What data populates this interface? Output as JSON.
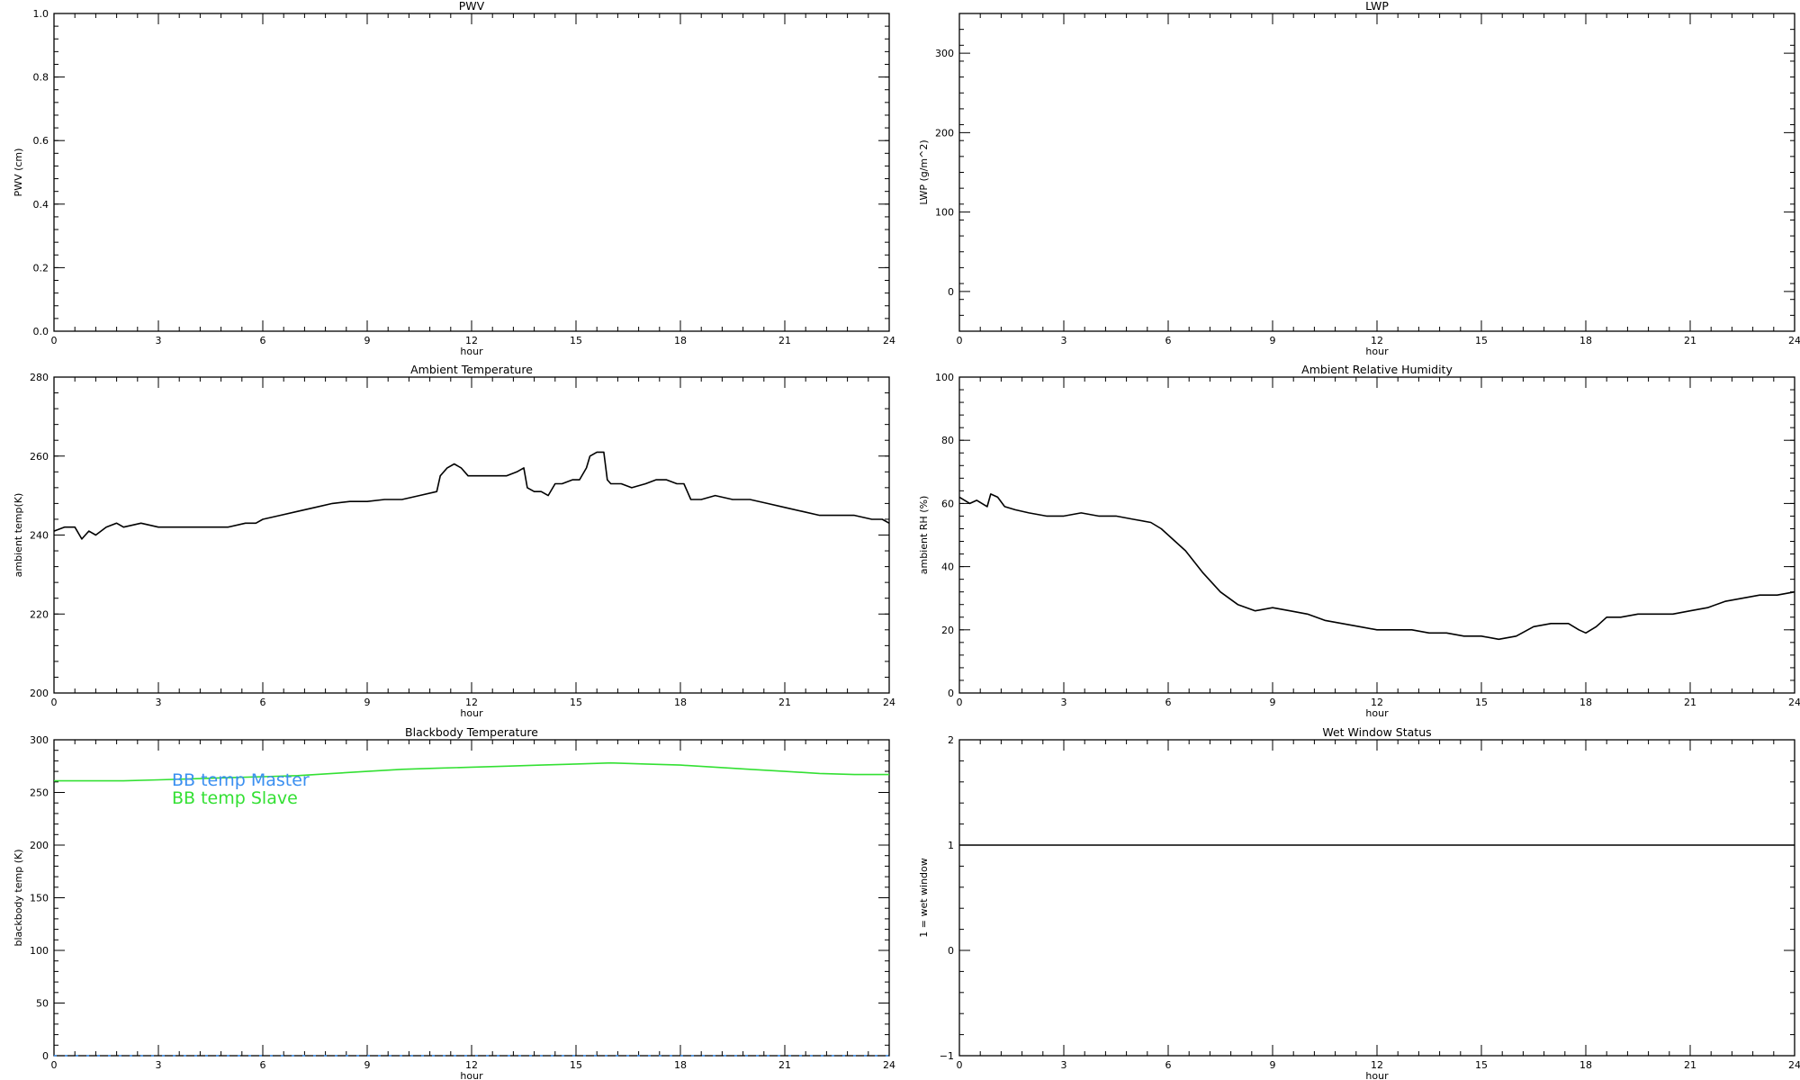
{
  "chart_data": [
    {
      "type": "line",
      "title": "PWV",
      "xlabel": "hour",
      "ylabel": "PWV (cm)",
      "xlim": [
        0,
        24
      ],
      "ylim": [
        0.0,
        1.0
      ],
      "xticks": [
        0,
        3,
        6,
        9,
        12,
        15,
        18,
        21,
        24
      ],
      "xtick_labels": [
        "0",
        "3",
        "6",
        "9",
        "12",
        "15",
        "18",
        "21",
        "24"
      ],
      "yticks": [
        0.0,
        0.2,
        0.4,
        0.6,
        0.8,
        1.0
      ],
      "ytick_labels": [
        "0.0",
        "0.2",
        "0.4",
        "0.6",
        "0.8",
        "1.0"
      ],
      "series": []
    },
    {
      "type": "line",
      "title": "LWP",
      "xlabel": "hour",
      "ylabel": "LWP (g/m^2)",
      "xlim": [
        0,
        24
      ],
      "ylim": [
        -50,
        350
      ],
      "xticks": [
        0,
        3,
        6,
        9,
        12,
        15,
        18,
        21,
        24
      ],
      "xtick_labels": [
        "0",
        "3",
        "6",
        "9",
        "12",
        "15",
        "18",
        "21",
        "24"
      ],
      "yticks": [
        0,
        100,
        200,
        300
      ],
      "ytick_labels": [
        "0",
        "100",
        "200",
        "300"
      ],
      "series": []
    },
    {
      "type": "line",
      "title": "Ambient Temperature",
      "xlabel": "hour",
      "ylabel": "ambient temp(K)",
      "xlim": [
        0,
        24
      ],
      "ylim": [
        200,
        280
      ],
      "xticks": [
        0,
        3,
        6,
        9,
        12,
        15,
        18,
        21,
        24
      ],
      "xtick_labels": [
        "0",
        "3",
        "6",
        "9",
        "12",
        "15",
        "18",
        "21",
        "24"
      ],
      "yticks": [
        200,
        220,
        240,
        260,
        280
      ],
      "ytick_labels": [
        "200",
        "220",
        "240",
        "260",
        "280"
      ],
      "series": [
        {
          "color": "#000000",
          "x": [
            0,
            0.3,
            0.6,
            0.8,
            1.0,
            1.2,
            1.5,
            1.8,
            2.0,
            2.5,
            3.0,
            3.5,
            4.0,
            4.5,
            5.0,
            5.5,
            5.8,
            6.0,
            6.5,
            7.0,
            7.5,
            8.0,
            8.5,
            9.0,
            9.5,
            10.0,
            10.5,
            11.0,
            11.1,
            11.3,
            11.5,
            11.7,
            11.9,
            12.0,
            12.3,
            12.6,
            13.0,
            13.3,
            13.5,
            13.6,
            13.8,
            14.0,
            14.2,
            14.4,
            14.6,
            14.9,
            15.1,
            15.3,
            15.4,
            15.6,
            15.8,
            15.9,
            16.0,
            16.3,
            16.6,
            17.0,
            17.3,
            17.6,
            17.9,
            18.1,
            18.3,
            18.6,
            19.0,
            19.5,
            20.0,
            20.5,
            21.0,
            21.5,
            22.0,
            22.5,
            23.0,
            23.5,
            23.8,
            24.0
          ],
          "y": [
            241,
            242,
            242,
            239,
            241,
            240,
            242,
            243,
            242,
            243,
            242,
            242,
            242,
            242,
            242,
            243,
            243,
            244,
            245,
            246,
            247,
            248,
            248.5,
            248.5,
            249,
            249,
            250,
            251,
            255,
            257,
            258,
            257,
            255,
            255,
            255,
            255,
            255,
            256,
            257,
            252,
            251,
            251,
            250,
            253,
            253,
            254,
            254,
            257,
            260,
            261,
            261,
            254,
            253,
            253,
            252,
            253,
            254,
            254,
            253,
            253,
            249,
            249,
            250,
            249,
            249,
            248,
            247,
            246,
            245,
            245,
            245,
            244,
            244,
            243
          ]
        }
      ]
    },
    {
      "type": "line",
      "title": "Ambient Relative Humidity",
      "xlabel": "hour",
      "ylabel": "ambient RH (%)",
      "xlim": [
        0,
        24
      ],
      "ylim": [
        0,
        100
      ],
      "xticks": [
        0,
        3,
        6,
        9,
        12,
        15,
        18,
        21,
        24
      ],
      "xtick_labels": [
        "0",
        "3",
        "6",
        "9",
        "12",
        "15",
        "18",
        "21",
        "24"
      ],
      "yticks": [
        0,
        20,
        40,
        60,
        80,
        100
      ],
      "ytick_labels": [
        "0",
        "20",
        "40",
        "60",
        "80",
        "100"
      ],
      "series": [
        {
          "color": "#000000",
          "x": [
            0,
            0.3,
            0.5,
            0.8,
            0.9,
            1.1,
            1.3,
            1.6,
            2.0,
            2.5,
            3.0,
            3.5,
            4.0,
            4.5,
            5.0,
            5.5,
            5.8,
            6.0,
            6.5,
            7.0,
            7.5,
            8.0,
            8.5,
            9.0,
            9.5,
            10.0,
            10.5,
            11.0,
            11.5,
            12.0,
            13.0,
            13.5,
            14.0,
            14.5,
            15.0,
            15.5,
            16.0,
            16.5,
            17.0,
            17.5,
            17.8,
            18.0,
            18.3,
            18.6,
            19.0,
            19.5,
            20.0,
            20.5,
            21.0,
            21.5,
            22.0,
            22.5,
            23.0,
            23.5,
            24.0
          ],
          "y": [
            62,
            60,
            61,
            59,
            63,
            62,
            59,
            58,
            57,
            56,
            56,
            57,
            56,
            56,
            55,
            54,
            52,
            50,
            45,
            38,
            32,
            28,
            26,
            27,
            26,
            25,
            23,
            22,
            21,
            20,
            20,
            19,
            19,
            18,
            18,
            17,
            18,
            21,
            22,
            22,
            20,
            19,
            21,
            24,
            24,
            25,
            25,
            25,
            26,
            27,
            29,
            30,
            31,
            31,
            32
          ]
        }
      ]
    },
    {
      "type": "line",
      "title": "Blackbody Temperature",
      "xlabel": "hour",
      "ylabel": "blackbody temp (K)",
      "xlim": [
        0,
        24
      ],
      "ylim": [
        0,
        300
      ],
      "xticks": [
        0,
        3,
        6,
        9,
        12,
        15,
        18,
        21,
        24
      ],
      "xtick_labels": [
        "0",
        "3",
        "6",
        "9",
        "12",
        "15",
        "18",
        "21",
        "24"
      ],
      "yticks": [
        0,
        50,
        100,
        150,
        200,
        250,
        300
      ],
      "ytick_labels": [
        "0",
        "50",
        "100",
        "150",
        "200",
        "250",
        "300"
      ],
      "legend_placement": "upper-left",
      "series": [
        {
          "name": "BB temp Master",
          "color": "#3a8ff0",
          "dashed": true,
          "x": [
            0,
            3,
            6,
            9,
            12,
            15,
            18,
            21,
            24
          ],
          "y": [
            0,
            0,
            0,
            0,
            0,
            0,
            0,
            0,
            0
          ]
        },
        {
          "name": "BB temp Slave",
          "color": "#33e033",
          "dashed": false,
          "x": [
            0,
            1,
            2,
            3,
            4,
            5,
            6,
            7,
            8,
            9,
            10,
            11,
            12,
            13,
            14,
            15,
            16,
            17,
            18,
            19,
            20,
            21,
            22,
            23,
            24
          ],
          "y": [
            261,
            261,
            261,
            262,
            263,
            264,
            265,
            266,
            268,
            270,
            272,
            273,
            274,
            275,
            276,
            277,
            278,
            277,
            276,
            274,
            272,
            270,
            268,
            267,
            267
          ]
        }
      ]
    },
    {
      "type": "line",
      "title": "Wet Window Status",
      "xlabel": "hour",
      "ylabel": "1 = wet window",
      "xlim": [
        0,
        24
      ],
      "ylim": [
        -1,
        2
      ],
      "xticks": [
        0,
        3,
        6,
        9,
        12,
        15,
        18,
        21,
        24
      ],
      "xtick_labels": [
        "0",
        "3",
        "6",
        "9",
        "12",
        "15",
        "18",
        "21",
        "24"
      ],
      "yticks": [
        -1,
        0,
        1,
        2
      ],
      "ytick_labels": [
        "−1",
        "0",
        "1",
        "2"
      ],
      "series": [
        {
          "color": "#000000",
          "x": [
            0,
            24
          ],
          "y": [
            1,
            1
          ]
        }
      ]
    }
  ]
}
